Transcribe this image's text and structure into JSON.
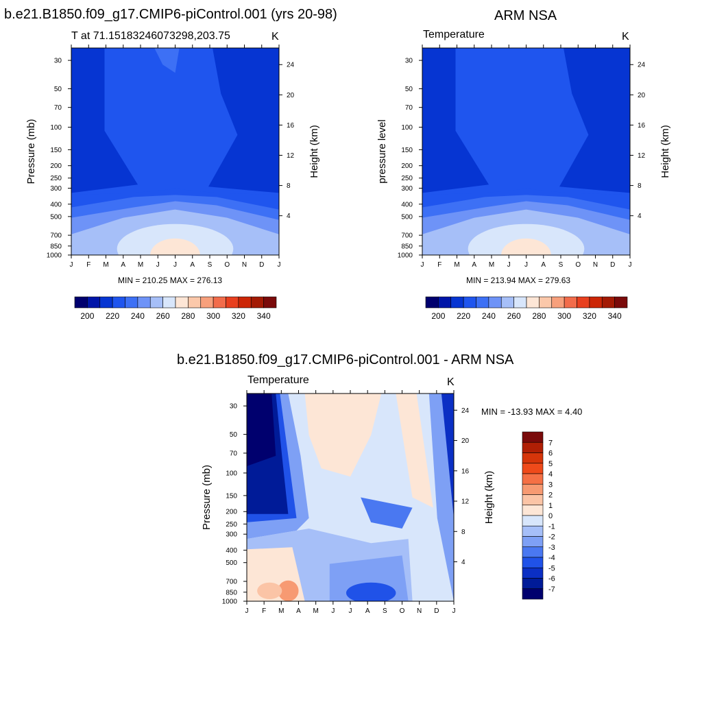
{
  "page": {
    "title_left": "b.e21.B1850.f09_g17.CMIP6-piControl.001 (yrs 20-98)",
    "title_right": "ARM NSA",
    "title_bottom": "b.e21.B1850.f09_g17.CMIP6-piControl.001 - ARM NSA"
  },
  "chart_data": [
    {
      "type": "heatmap",
      "subtitle": "T at 71.15183246073298,203.75",
      "units": "K",
      "ylabel": "Pressure (mb)",
      "ylabel_right": "Height (km)",
      "x": [
        "J",
        "F",
        "M",
        "A",
        "M",
        "J",
        "J",
        "A",
        "S",
        "O",
        "N",
        "D",
        "J"
      ],
      "pressure_ticks": [
        30,
        50,
        70,
        100,
        150,
        200,
        250,
        300,
        400,
        500,
        700,
        850,
        1000
      ],
      "height_ticks": [
        4,
        8,
        12,
        16,
        20,
        24
      ],
      "y_scale": "log",
      "stats": "MIN = 210.25 MAX = 276.13",
      "min": 210.25,
      "max": 276.13,
      "colorbar": {
        "ticks": [
          200,
          220,
          240,
          260,
          280,
          300,
          320,
          340
        ],
        "levels": [
          190,
          200,
          210,
          220,
          230,
          240,
          250,
          260,
          270,
          280,
          290,
          300,
          310,
          320,
          330,
          340,
          350
        ]
      }
    },
    {
      "type": "heatmap",
      "subtitle": "Temperature",
      "units": "K",
      "ylabel": "pressure level",
      "ylabel_right": "Height (km)",
      "x": [
        "J",
        "F",
        "M",
        "A",
        "M",
        "J",
        "J",
        "A",
        "S",
        "O",
        "N",
        "D",
        "J"
      ],
      "pressure_ticks": [
        30,
        50,
        70,
        100,
        150,
        200,
        250,
        300,
        400,
        500,
        700,
        850,
        1000
      ],
      "height_ticks": [
        4,
        8,
        12,
        16,
        20,
        24
      ],
      "y_scale": "log",
      "stats": "MIN = 213.94 MAX = 279.63",
      "min": 213.94,
      "max": 279.63,
      "colorbar": {
        "ticks": [
          200,
          220,
          240,
          260,
          280,
          300,
          320,
          340
        ],
        "levels": [
          190,
          200,
          210,
          220,
          230,
          240,
          250,
          260,
          270,
          280,
          290,
          300,
          310,
          320,
          330,
          340,
          350
        ]
      }
    },
    {
      "type": "heatmap",
      "subtitle": "Temperature",
      "units": "K",
      "ylabel": "Pressure (mb)",
      "ylabel_right": "Height (km)",
      "x": [
        "J",
        "F",
        "M",
        "A",
        "M",
        "J",
        "J",
        "A",
        "S",
        "O",
        "N",
        "D",
        "J"
      ],
      "pressure_ticks": [
        30,
        50,
        70,
        100,
        150,
        200,
        250,
        300,
        400,
        500,
        700,
        850,
        1000
      ],
      "height_ticks": [
        4,
        8,
        12,
        16,
        20,
        24
      ],
      "y_scale": "log",
      "stats": "MIN = -13.93 MAX =   4.40",
      "min": -13.93,
      "max": 4.4,
      "colorbar": {
        "ticks": [
          7,
          6,
          5,
          4,
          3,
          2,
          1,
          0,
          -1,
          -2,
          -3,
          -4,
          -5,
          -6,
          -7
        ]
      }
    }
  ],
  "colors": {
    "temp_scale": [
      "#00006e",
      "#0015a8",
      "#0635d2",
      "#1f55ee",
      "#3d70f5",
      "#6e93f7",
      "#a6bff8",
      "#d8e6fb",
      "#fde6d6",
      "#fbc8aa",
      "#f7a07c",
      "#f26c4b",
      "#e8401f",
      "#cc2606",
      "#a31a04",
      "#7a0a0a"
    ],
    "diff_scale": [
      "#7a0a0a",
      "#b01f05",
      "#d6350a",
      "#ef4a1a",
      "#f57045",
      "#f79a72",
      "#fbc4a6",
      "#fde6d6",
      "#d8e6fb",
      "#a6bff8",
      "#7ea0f5",
      "#4a78f1",
      "#2052e8",
      "#0b2fc4",
      "#001b98",
      "#00006e"
    ]
  }
}
